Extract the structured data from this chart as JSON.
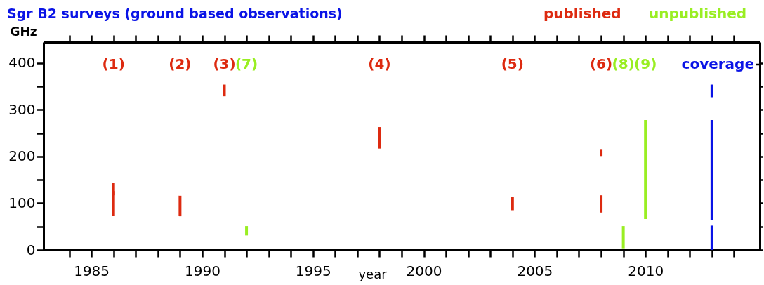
{
  "chart_data": {
    "type": "bar",
    "title": "Sgr B2 surveys (ground based observations)",
    "xlabel": "year",
    "ylabel": "GHz",
    "xlim": [
      1983,
      2015
    ],
    "ylim": [
      0,
      445
    ],
    "xticks": [
      {
        "value": 1984,
        "label": null
      },
      1985,
      {
        "value": 1986,
        "label": null
      },
      {
        "value": 1987,
        "label": null
      },
      {
        "value": 1988,
        "label": null
      },
      {
        "value": 1989,
        "label": null
      },
      1990,
      {
        "value": 1991,
        "label": null
      },
      {
        "value": 1992,
        "label": null
      },
      {
        "value": 1993,
        "label": null
      },
      {
        "value": 1994,
        "label": null
      },
      1995,
      {
        "value": 1996,
        "label": null
      },
      {
        "value": 1997,
        "label": null
      },
      {
        "value": 1998,
        "label": null
      },
      {
        "value": 1999,
        "label": null
      },
      2000,
      {
        "value": 2001,
        "label": null
      },
      {
        "value": 2002,
        "label": null
      },
      {
        "value": 2003,
        "label": null
      },
      {
        "value": 2004,
        "label": null
      },
      2005,
      {
        "value": 2006,
        "label": null
      },
      {
        "value": 2007,
        "label": null
      },
      {
        "value": 2008,
        "label": null
      },
      {
        "value": 2009,
        "label": null
      },
      2010,
      {
        "value": 2011,
        "label": null
      },
      {
        "value": 2012,
        "label": null
      },
      {
        "value": 2013,
        "label": null
      },
      {
        "value": 2014,
        "label": null
      }
    ],
    "yticks": [
      0,
      {
        "value": 50,
        "label": null
      },
      100,
      {
        "value": 150,
        "label": null
      },
      200,
      {
        "value": 250,
        "label": null
      },
      300,
      {
        "value": 350,
        "label": null
      },
      400
    ],
    "grid": false,
    "legend": "top right",
    "series": [
      {
        "name": "published",
        "color": "#dd2a10",
        "x": [
          1986,
          1989,
          1991,
          1998,
          2004,
          2008
        ],
        "base": [
          73,
          72,
          329,
          217,
          85,
          201
        ],
        "values": [
          53,
          44,
          25,
          46,
          28,
          15
        ]
      },
      {
        "color": "#dd2a10",
        "x": [
          1986,
          2008
        ],
        "base": [
          117,
          80
        ],
        "values": [
          27,
          37
        ]
      },
      {
        "name": "unpublished",
        "color": "#99ee22",
        "x": [
          1992,
          2009,
          2010
        ],
        "base": [
          31,
          2,
          66
        ],
        "values": [
          20,
          49,
          212
        ]
      },
      {
        "name": "coverage",
        "color": "#0a14e6",
        "x": [
          2013
        ],
        "base": [
          327
        ],
        "values": [
          27
        ]
      },
      {
        "color": "#0a14e6",
        "x": [
          2013
        ],
        "base": [
          64
        ],
        "values": [
          214
        ]
      },
      {
        "color": "#0a14e6",
        "x": [
          2013
        ],
        "base": [
          0
        ],
        "values": [
          52
        ]
      }
    ],
    "annotations": [
      "(1)",
      "(2)",
      "(3)",
      "(7)",
      "(4)",
      "(5)",
      "(6)",
      "(8)",
      "(9)"
    ]
  }
}
